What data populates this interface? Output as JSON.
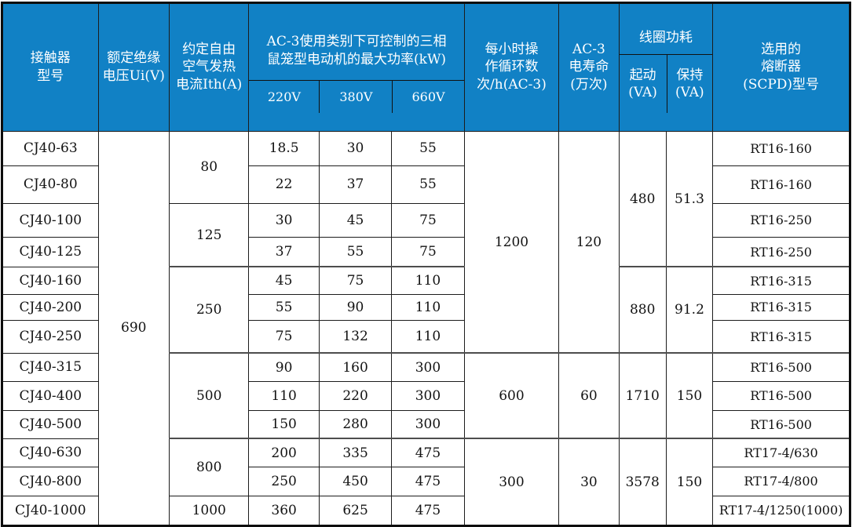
{
  "colors": {
    "header_bg": "#1181c5",
    "header_text": "#ffffff",
    "border": "#1c1c1c",
    "group_separator": "#4d4d4d",
    "body_text": "#121212"
  },
  "header": {
    "model": "接触器\n型号",
    "ui": "额定绝缘\n电压Ui(V)",
    "ith": "约定自由\n空气发热\n电流Ith(A)",
    "power_group": "AC-3使用类别下可控制的三相\n鼠笼型电动机的最大功率(kW)",
    "v220": "220V",
    "v380": "380V",
    "v660": "660V",
    "cycles": "每小时操\n作循环数\n次/h(AC-3)",
    "life": "AC-3\n电寿命\n(万次)",
    "coil_group": "线圈功耗",
    "coil_start": "起动\n(VA)",
    "coil_hold": "保持\n(VA)",
    "fuse": "选用的\n熔断器\n(SCPD)型号"
  },
  "rows": [
    {
      "model": "CJ40-63",
      "p220": "18.5",
      "p380": "30",
      "p660": "55",
      "fuse": "RT16-160"
    },
    {
      "model": "CJ40-80",
      "p220": "22",
      "p380": "37",
      "p660": "55",
      "fuse": "RT16-160"
    },
    {
      "model": "CJ40-100",
      "p220": "30",
      "p380": "45",
      "p660": "75",
      "fuse": "RT16-250"
    },
    {
      "model": "CJ40-125",
      "p220": "37",
      "p380": "55",
      "p660": "75",
      "fuse": "RT16-250"
    },
    {
      "model": "CJ40-160",
      "p220": "45",
      "p380": "75",
      "p660": "110",
      "fuse": "RT16-315"
    },
    {
      "model": "CJ40-200",
      "p220": "55",
      "p380": "90",
      "p660": "110",
      "fuse": "RT16-315"
    },
    {
      "model": "CJ40-250",
      "p220": "75",
      "p380": "132",
      "p660": "110",
      "fuse": "RT16-315"
    },
    {
      "model": "CJ40-315",
      "p220": "90",
      "p380": "160",
      "p660": "300",
      "fuse": "RT16-500"
    },
    {
      "model": "CJ40-400",
      "p220": "110",
      "p380": "220",
      "p660": "300",
      "fuse": "RT16-500"
    },
    {
      "model": "CJ40-500",
      "p220": "150",
      "p380": "280",
      "p660": "300",
      "fuse": "RT16-500"
    },
    {
      "model": "CJ40-630",
      "p220": "200",
      "p380": "335",
      "p660": "475",
      "fuse": "RT17-4/630"
    },
    {
      "model": "CJ40-800",
      "p220": "250",
      "p380": "450",
      "p660": "475",
      "fuse": "RT17-4/800"
    },
    {
      "model": "CJ40-1000",
      "p220": "360",
      "p380": "625",
      "p660": "475",
      "fuse": "RT17-4/1250(1000)"
    }
  ],
  "merged": {
    "ui": [
      {
        "value": "690",
        "row": 1,
        "span": 13
      }
    ],
    "ith": [
      {
        "value": "80",
        "row": 1,
        "span": 2
      },
      {
        "value": "125",
        "row": 3,
        "span": 2
      },
      {
        "value": "250",
        "row": 5,
        "span": 3
      },
      {
        "value": "500",
        "row": 8,
        "span": 3
      },
      {
        "value": "800",
        "row": 11,
        "span": 2
      },
      {
        "value": "1000",
        "row": 13,
        "span": 1
      }
    ],
    "cycles": [
      {
        "value": "1200",
        "row": 1,
        "span": 7
      },
      {
        "value": "600",
        "row": 8,
        "span": 3
      },
      {
        "value": "300",
        "row": 11,
        "span": 3
      }
    ],
    "life": [
      {
        "value": "120",
        "row": 1,
        "span": 7
      },
      {
        "value": "60",
        "row": 8,
        "span": 3
      },
      {
        "value": "30",
        "row": 11,
        "span": 3
      }
    ],
    "coil_start": [
      {
        "value": "480",
        "row": 1,
        "span": 4
      },
      {
        "value": "880",
        "row": 5,
        "span": 3
      },
      {
        "value": "1710",
        "row": 8,
        "span": 3
      },
      {
        "value": "3578",
        "row": 11,
        "span": 3
      }
    ],
    "coil_hold": [
      {
        "value": "51.3",
        "row": 1,
        "span": 4
      },
      {
        "value": "91.2",
        "row": 5,
        "span": 3
      },
      {
        "value": "150",
        "row": 8,
        "span": 3
      },
      {
        "value": "150",
        "row": 11,
        "span": 3
      }
    ]
  },
  "group_separator_rows": [
    5,
    8,
    11
  ]
}
